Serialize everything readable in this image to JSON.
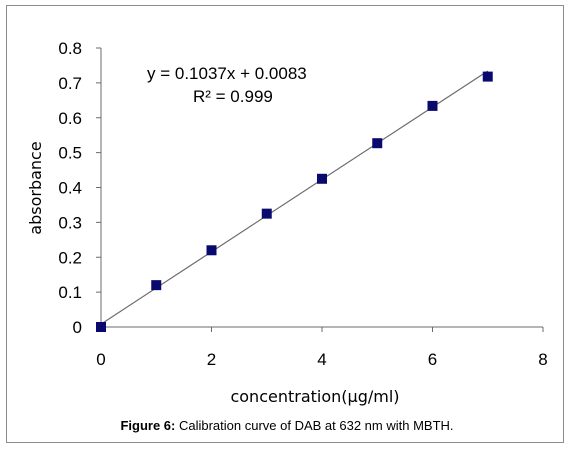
{
  "chart_data": {
    "type": "scatter",
    "xlabel": "concentration(µg/ml)",
    "ylabel": "absorbance",
    "xlim": [
      0,
      8
    ],
    "ylim": [
      0,
      0.8
    ],
    "x_ticks": [
      "0",
      "2",
      "4",
      "6",
      "8"
    ],
    "y_ticks": [
      "0",
      "0.1",
      "0.2",
      "0.3",
      "0.4",
      "0.5",
      "0.6",
      "0.7",
      "0.8"
    ],
    "grid": false,
    "series": [
      {
        "x": [
          0,
          1,
          2,
          3,
          4,
          5,
          6,
          7
        ],
        "y": [
          0,
          0.12,
          0.22,
          0.325,
          0.425,
          0.527,
          0.634,
          0.718
        ],
        "marker": "square",
        "color": "#0a0a6e"
      }
    ],
    "trendline": {
      "slope": 0.1037,
      "intercept": 0.0083,
      "color": "#6b6b6b",
      "equation": "y = 0.1037x  + 0.0083",
      "r_squared": "R² = 0.999"
    }
  },
  "caption": {
    "label": "Figure 6:",
    "text": " Calibration curve of DAB at 632 nm with MBTH."
  }
}
